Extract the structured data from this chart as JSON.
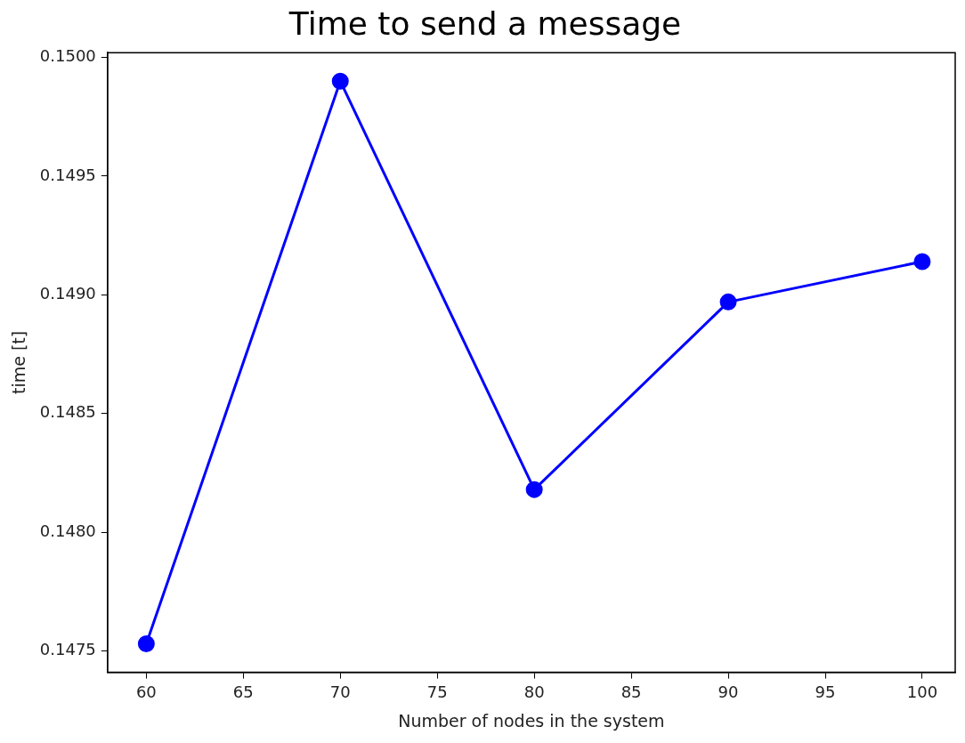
{
  "chart_data": {
    "type": "line",
    "title": "Time to send a message",
    "xlabel": "Number of nodes in the system",
    "ylabel": "time [t]",
    "x": [
      60,
      70,
      80,
      90,
      100
    ],
    "series": [
      {
        "color": "#0000ff",
        "values": [
          0.14753,
          0.1499,
          0.14818,
          0.14897,
          0.14914
        ]
      }
    ],
    "xlim": [
      58,
      101.7
    ],
    "xticks": [
      60,
      65,
      70,
      75,
      80,
      85,
      90,
      95,
      100
    ],
    "ylim": [
      0.14741,
      0.15002
    ],
    "yticks": [
      {
        "value": 0.1475,
        "label": "0.1475"
      },
      {
        "value": 0.148,
        "label": "0.1480"
      },
      {
        "value": 0.1485,
        "label": "0.1485"
      },
      {
        "value": 0.149,
        "label": "0.1490"
      },
      {
        "value": 0.1495,
        "label": "0.1495"
      },
      {
        "value": 0.15,
        "label": "0.1500"
      }
    ],
    "grid": false,
    "legend": false,
    "marker": "circle",
    "line_style": "solid"
  }
}
